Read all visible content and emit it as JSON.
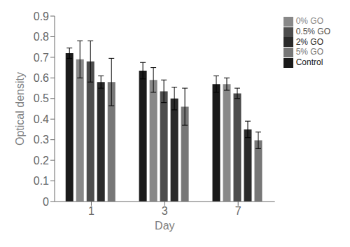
{
  "chart_data": {
    "type": "bar",
    "xlabel": "Day",
    "ylabel": "Optical density",
    "categories": [
      "1",
      "3",
      "7"
    ],
    "series": [
      {
        "name": "Control",
        "color": "#1a1a1a",
        "values": [
          0.72,
          0.635,
          0.57
        ],
        "errors": [
          0.025,
          0.04,
          0.04
        ]
      },
      {
        "name": "0% GO",
        "color": "#888888",
        "values": [
          0.69,
          0.59,
          0.57
        ],
        "errors": [
          0.09,
          0.06,
          0.03
        ]
      },
      {
        "name": "0.5% GO",
        "color": "#4d4d4d",
        "values": [
          0.68,
          0.535,
          0.525
        ],
        "errors": [
          0.1,
          0.055,
          0.025
        ]
      },
      {
        "name": "2% GO",
        "color": "#2a2a2a",
        "values": [
          0.58,
          0.5,
          0.35
        ],
        "errors": [
          0.03,
          0.055,
          0.04
        ]
      },
      {
        "name": "5% GO",
        "color": "#777777",
        "values": [
          0.58,
          0.46,
          0.297
        ],
        "errors": [
          0.115,
          0.09,
          0.04
        ]
      }
    ],
    "ylim": [
      0,
      0.9
    ],
    "yticks": [
      0,
      0.1,
      0.2,
      0.3,
      0.4,
      0.5,
      0.6,
      0.7,
      0.8,
      0.9
    ],
    "grid": false,
    "legend": "upper right"
  }
}
